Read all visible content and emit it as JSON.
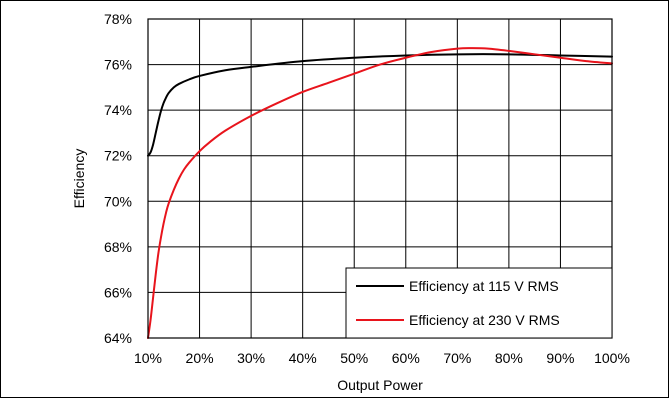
{
  "chart_data": {
    "type": "line",
    "xlabel": "Output Power",
    "ylabel": "Efficiency",
    "x_unit": "%",
    "y_unit": "%",
    "xlim": [
      10,
      100
    ],
    "ylim": [
      64,
      78
    ],
    "x_ticks": [
      10,
      20,
      30,
      40,
      50,
      60,
      70,
      80,
      90,
      100
    ],
    "y_ticks": [
      64,
      66,
      68,
      70,
      72,
      74,
      76,
      78
    ],
    "x_tick_labels": [
      "10%",
      "20%",
      "30%",
      "40%",
      "50%",
      "60%",
      "70%",
      "80%",
      "90%",
      "100%"
    ],
    "y_tick_labels": [
      "64%",
      "66%",
      "68%",
      "70%",
      "72%",
      "74%",
      "76%",
      "78%"
    ],
    "grid": true,
    "legend_position": "bottom-right",
    "series": [
      {
        "name": "Efficiency at 115 V RMS",
        "color": "#000000",
        "x": [
          10,
          10.5,
          11,
          11.5,
          12,
          12.5,
          13,
          13.5,
          14,
          15,
          16,
          18,
          20,
          25,
          30,
          40,
          50,
          60,
          70,
          80,
          90,
          100
        ],
        "y": [
          72.0,
          72.15,
          72.5,
          73.0,
          73.5,
          73.95,
          74.3,
          74.55,
          74.75,
          75.0,
          75.15,
          75.35,
          75.5,
          75.75,
          75.9,
          76.15,
          76.3,
          76.4,
          76.45,
          76.45,
          76.4,
          76.35
        ]
      },
      {
        "name": "Efficiency at 230 V RMS",
        "color": "#e8141c",
        "x": [
          10,
          10.5,
          11,
          11.5,
          12,
          12.5,
          13,
          13.5,
          14,
          15,
          16,
          17,
          18,
          20,
          22,
          25,
          30,
          35,
          40,
          45,
          50,
          55,
          60,
          65,
          70,
          73,
          76,
          80,
          85,
          90,
          95,
          100
        ],
        "y": [
          64.0,
          64.8,
          65.8,
          66.8,
          67.7,
          68.4,
          69.0,
          69.5,
          69.9,
          70.5,
          71.0,
          71.4,
          71.7,
          72.2,
          72.6,
          73.1,
          73.75,
          74.3,
          74.8,
          75.2,
          75.6,
          76.0,
          76.3,
          76.55,
          76.7,
          76.72,
          76.7,
          76.6,
          76.45,
          76.3,
          76.15,
          76.05
        ]
      }
    ]
  }
}
